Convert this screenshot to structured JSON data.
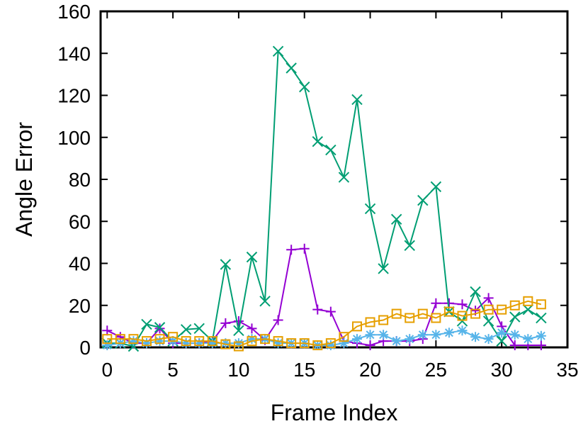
{
  "chart_data": {
    "type": "line",
    "xlabel": "Frame Index",
    "ylabel": "Angle Error",
    "xlim": [
      -0.5,
      35
    ],
    "ylim": [
      0,
      160
    ],
    "xticks": [
      "0",
      "5",
      "10",
      "15",
      "20",
      "25",
      "30",
      "35"
    ],
    "yticks": [
      "0",
      "20",
      "40",
      "60",
      "80",
      "100",
      "120",
      "140",
      "160"
    ],
    "grid": false,
    "legend": "none",
    "x": [
      0,
      1,
      2,
      3,
      4,
      5,
      6,
      7,
      8,
      9,
      10,
      11,
      12,
      13,
      14,
      15,
      16,
      17,
      18,
      19,
      20,
      21,
      22,
      23,
      24,
      25,
      26,
      27,
      28,
      29,
      30,
      31,
      32,
      33
    ],
    "series": [
      {
        "marker": "plus",
        "color": "#9400d3",
        "values": [
          8,
          5,
          2,
          2,
          9,
          2,
          2,
          2,
          3,
          11.5,
          12.5,
          9,
          3.5,
          13,
          46.5,
          47,
          18,
          17,
          3,
          2,
          1,
          3,
          3,
          3,
          4,
          21,
          21,
          20.5,
          17.5,
          23.5,
          10,
          1,
          1,
          1
        ]
      },
      {
        "marker": "cross",
        "color": "#009e73",
        "values": [
          2,
          2,
          0.5,
          11,
          9.5,
          3,
          8.5,
          9,
          3,
          39.5,
          8,
          43,
          22,
          141,
          133,
          124,
          98,
          94,
          81,
          118,
          66,
          37.5,
          61,
          48.5,
          70,
          76.5,
          17,
          12.5,
          26.5,
          12.5,
          3,
          14.5,
          18,
          14
        ]
      },
      {
        "marker": "asterisk",
        "color": "#56b4e9",
        "values": [
          1,
          2,
          3,
          2,
          3,
          3,
          2,
          2,
          2,
          2,
          2,
          4,
          4,
          2,
          2,
          2,
          1,
          1,
          2,
          4,
          6,
          6,
          3,
          4,
          6,
          6,
          7,
          8,
          5,
          4,
          7,
          6,
          4,
          5.5
        ]
      },
      {
        "marker": "square",
        "color": "#e69f00",
        "values": [
          4,
          4,
          4,
          3,
          4,
          5,
          3,
          3,
          3,
          1.5,
          0.5,
          3,
          4,
          3,
          2,
          2,
          1,
          2,
          5,
          10,
          12,
          13,
          16,
          14,
          16,
          14,
          17,
          15,
          16,
          18,
          18,
          20,
          22,
          20.5
        ]
      }
    ]
  }
}
